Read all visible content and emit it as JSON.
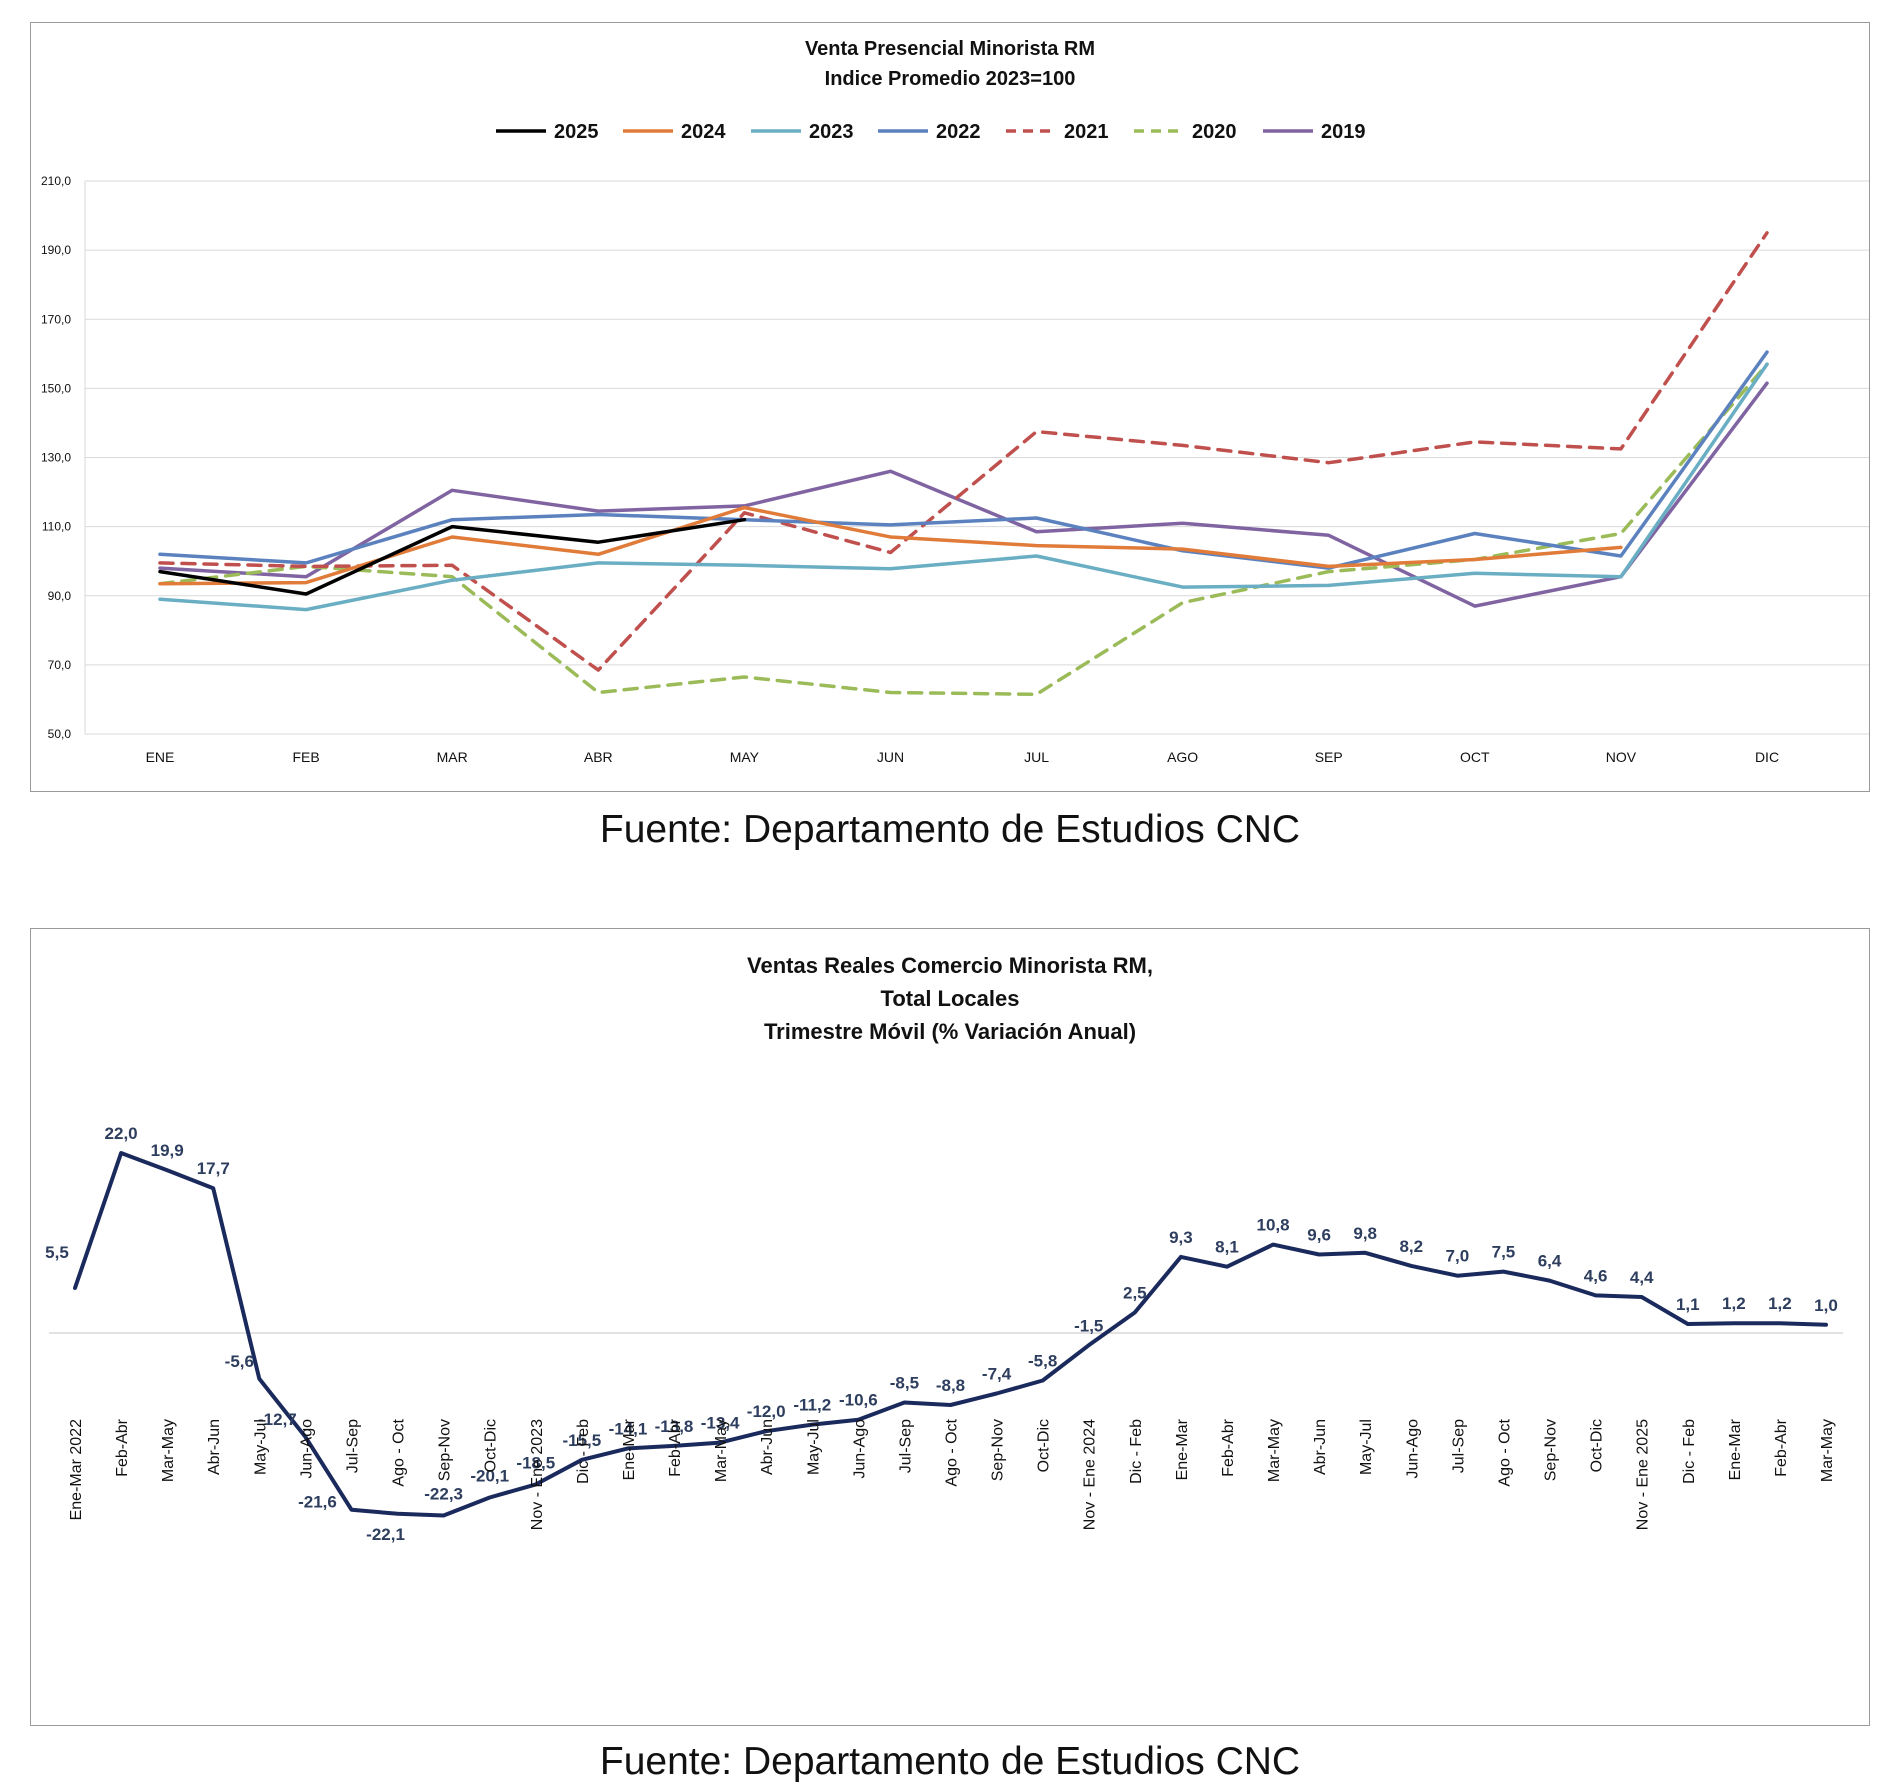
{
  "source_top": "Fuente: Departamento de Estudios CNC",
  "source_bottom": "Fuente: Departamento de Estudios CNC",
  "chart_data": [
    {
      "type": "line",
      "title": "Venta Presencial Minorista RM",
      "subtitle": "Indice Promedio 2023=100",
      "xlabel": "",
      "ylabel": "",
      "categories": [
        "ENE",
        "FEB",
        "MAR",
        "ABR",
        "MAY",
        "JUN",
        "JUL",
        "AGO",
        "SEP",
        "OCT",
        "NOV",
        "DIC"
      ],
      "ylim": [
        50,
        210
      ],
      "yticks": [
        "50,0",
        "70,0",
        "90,0",
        "110,0",
        "130,0",
        "150,0",
        "170,0",
        "190,0",
        "210,0"
      ],
      "grid": true,
      "legend": "top",
      "series": [
        {
          "name": "2025",
          "color": "#000000",
          "dash": false,
          "values": [
            97.0,
            90.5,
            110.0,
            105.5,
            112.0,
            null,
            null,
            null,
            null,
            null,
            null,
            null
          ]
        },
        {
          "name": "2024",
          "color": "#E07B39",
          "dash": false,
          "values": [
            93.5,
            93.8,
            107.0,
            102.0,
            115.5,
            107.0,
            104.5,
            103.5,
            98.5,
            100.5,
            104.0,
            null
          ]
        },
        {
          "name": "2023",
          "color": "#6AAEC4",
          "dash": false,
          "values": [
            89.0,
            86.0,
            94.5,
            99.5,
            98.8,
            97.8,
            101.5,
            92.5,
            93.0,
            96.5,
            95.5,
            157.0
          ]
        },
        {
          "name": "2022",
          "color": "#5B82BE",
          "dash": false,
          "values": [
            102.0,
            99.5,
            112.0,
            113.5,
            112.0,
            110.5,
            112.5,
            103.0,
            98.0,
            108.0,
            101.5,
            160.5
          ]
        },
        {
          "name": "2021",
          "color": "#C0504D",
          "dash": true,
          "values": [
            99.5,
            98.5,
            98.8,
            68.5,
            114.0,
            102.5,
            137.5,
            133.5,
            128.5,
            134.5,
            132.5,
            195.0
          ]
        },
        {
          "name": "2020",
          "color": "#9BBB59",
          "dash": true,
          "values": [
            93.5,
            98.5,
            95.5,
            62.0,
            66.5,
            62.0,
            61.5,
            88.0,
            97.0,
            100.5,
            108.0,
            157.0
          ]
        },
        {
          "name": "2019",
          "color": "#8064A2",
          "dash": false,
          "values": [
            98.0,
            95.5,
            120.5,
            114.5,
            116.0,
            126.0,
            108.5,
            111.0,
            107.5,
            87.0,
            95.5,
            151.5
          ]
        }
      ]
    },
    {
      "type": "line",
      "title_lines": [
        "Ventas Reales Comercio Minorista RM,",
        "Total Locales",
        "Trimestre Móvil (% Variación Anual)"
      ],
      "xlabel": "",
      "ylabel": "",
      "color": "#1B2A5C",
      "label_color": "#2E3E5E",
      "categories": [
        "Ene-Mar 2022",
        "Feb-Abr",
        "Mar-May",
        "Abr-Jun",
        "May-Jul",
        "Jun-Ago",
        "Jul-Sep",
        "Ago - Oct",
        "Sep-Nov",
        "Oct-Dic",
        "Nov - Ene 2023",
        "Dic - Feb",
        "Ene-Mar",
        "Feb-Abr",
        "Mar-May",
        "Abr-Jun",
        "May-Jul",
        "Jun-Ago",
        "Jul-Sep",
        "Ago - Oct",
        "Sep-Nov",
        "Oct-Dic",
        "Nov - Ene 2024",
        "Dic - Feb",
        "Ene-Mar",
        "Feb-Abr",
        "Mar-May",
        "Abr-Jun",
        "May-Jul",
        "Jun-Ago",
        "Jul-Sep",
        "Ago - Oct",
        "Sep-Nov",
        "Oct-Dic",
        "Nov - Ene 2025",
        "Dic - Feb",
        "Ene-Mar",
        "Feb-Abr",
        "Mar-May"
      ],
      "values": [
        5.5,
        22.0,
        19.9,
        17.7,
        -5.6,
        -12.7,
        -21.6,
        -22.1,
        -22.3,
        -20.1,
        -18.5,
        -15.5,
        -14.1,
        -13.8,
        -13.4,
        -12.0,
        -11.2,
        -10.6,
        -8.5,
        -8.8,
        -7.4,
        -5.8,
        -1.5,
        2.5,
        9.3,
        8.1,
        10.8,
        9.6,
        9.8,
        8.2,
        7.0,
        7.5,
        6.4,
        4.6,
        4.4,
        1.1,
        1.2,
        1.2,
        1.0
      ],
      "labels": [
        "5,5",
        "22,0",
        "19,9",
        "17,7",
        "-5,6",
        "-12,7",
        "-21,6",
        "-22,1",
        "-22,3",
        "-20,1",
        "-18,5",
        "-15,5",
        "-14,1",
        "-13,8",
        "-13,4",
        "-12,0",
        "-11,2",
        "-10,6",
        "-8,5",
        "-8,8",
        "-7,4",
        "-5,8",
        "-1,5",
        "2,5",
        "9,3",
        "8,1",
        "10,8",
        "9,6",
        "9,8",
        "8,2",
        "7,0",
        "7,5",
        "6,4",
        "4,6",
        "4,4",
        "1,1",
        "1,2",
        "1,2",
        "1,0"
      ],
      "data_labels": true,
      "grid": false
    }
  ]
}
